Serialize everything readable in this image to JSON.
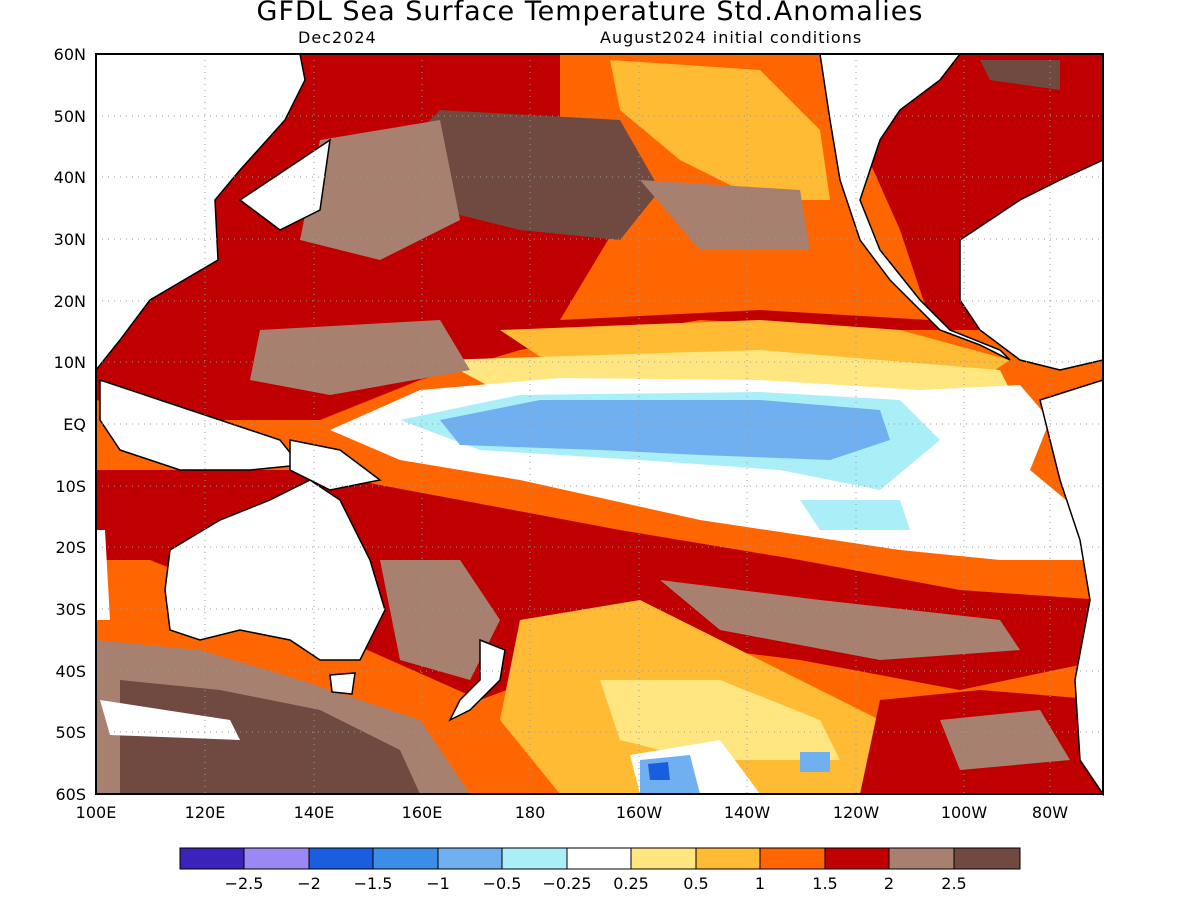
{
  "header": {
    "title": "GFDL Sea Surface Temperature Std.Anomalies",
    "subtitle_left": "Dec2024",
    "subtitle_right": "August2024 initial conditions"
  },
  "map": {
    "lat_labels": [
      "60N",
      "50N",
      "40N",
      "30N",
      "20N",
      "10N",
      "EQ",
      "10S",
      "20S",
      "30S",
      "40S",
      "50S",
      "60S"
    ],
    "lon_labels": [
      "100E",
      "120E",
      "140E",
      "160E",
      "180",
      "160W",
      "140W",
      "120W",
      "100W",
      "80W"
    ],
    "colors": {
      "land": "#ffffff",
      "coastline": "#000000",
      "neutral": "#ffffff",
      "warm_0_25": "#ffe680",
      "warm_0_5": "#ffbb33",
      "warm_1": "#ff6600",
      "warm_1_5": "#c00000",
      "warm_2": "#a88070",
      "warm_2_5": "#704a40",
      "cool_0_25": "#aaeef8",
      "cool_0_5": "#70b0f0",
      "cool_1": "#3b8ee8",
      "cool_1_5": "#1a5ee0",
      "cool_2": "#9c88f2",
      "cool_2_5": "#3a22bb"
    }
  },
  "legend": {
    "colors": [
      "#3a22bb",
      "#9c88f2",
      "#1a5ee0",
      "#3b8ee8",
      "#70b0f0",
      "#aaeef8",
      "#ffffff",
      "#ffe680",
      "#ffbb33",
      "#ff6600",
      "#c00000",
      "#a88070",
      "#704a40"
    ],
    "labels": [
      "−2.5",
      "−2",
      "−1.5",
      "−1",
      "−0.5",
      "−0.25",
      "0.25",
      "0.5",
      "1",
      "1.5",
      "2",
      "2.5"
    ]
  }
}
